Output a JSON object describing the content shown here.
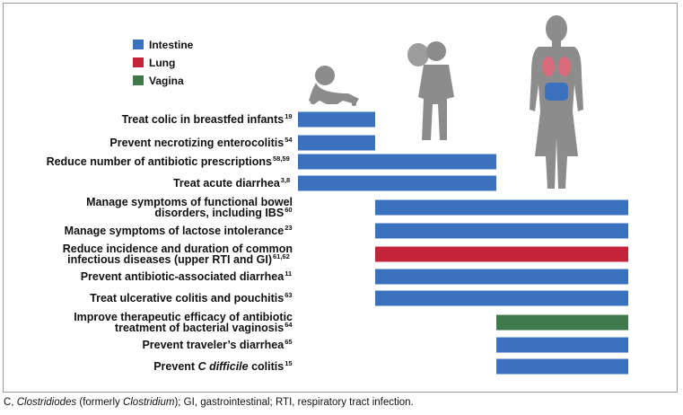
{
  "chart_data": {
    "type": "bar",
    "orientation": "horizontal",
    "subtype": "range",
    "title": "",
    "xlabel": "",
    "ylabel": "",
    "stage_axis": [
      "Infant",
      "Child",
      "Adult"
    ],
    "legend": [
      {
        "name": "Intestine",
        "color": "#3a72bf"
      },
      {
        "name": "Lung",
        "color": "#c3243a"
      },
      {
        "name": "Vagina",
        "color": "#3f7a4c"
      }
    ],
    "bars": [
      {
        "label": "Treat colic in breastfed infants",
        "ref": "19",
        "site": "Intestine",
        "start": 0,
        "end": 1
      },
      {
        "label": "Prevent necrotizing enterocolitis",
        "ref": "54",
        "site": "Intestine",
        "start": 0,
        "end": 1
      },
      {
        "label": "Reduce number of antibiotic prescriptions",
        "ref": "58,59",
        "site": "Intestine",
        "start": 0,
        "end": 2
      },
      {
        "label": "Treat acute diarrhea",
        "ref": "3,8",
        "site": "Intestine",
        "start": 0,
        "end": 2
      },
      {
        "label": "Manage symptoms of functional bowel|disorders, including IBS",
        "ref": "60",
        "site": "Intestine",
        "start": 1,
        "end": 3
      },
      {
        "label": "Manage symptoms of lactose intolerance",
        "ref": "23",
        "site": "Intestine",
        "start": 1,
        "end": 3
      },
      {
        "label": "Reduce incidence and duration of common|infectious diseases (upper RTI and GI)",
        "ref": "61,62",
        "site": "Lung",
        "start": 1,
        "end": 3
      },
      {
        "label": "Prevent antibiotic-associated diarrhea",
        "ref": "11",
        "site": "Intestine",
        "start": 1,
        "end": 3
      },
      {
        "label": "Treat ulcerative colitis and pouchitis",
        "ref": "63",
        "site": "Intestine",
        "start": 1,
        "end": 3
      },
      {
        "label": "Improve therapeutic efficacy of antibiotic|treatment of bacterial vaginosis",
        "ref": "64",
        "site": "Vagina",
        "start": 2,
        "end": 3
      },
      {
        "label": "Prevent traveler’s diarrhea",
        "ref": "65",
        "site": "Intestine",
        "start": 2,
        "end": 3
      },
      {
        "label": "Prevent C difficile colitis",
        "ref": "15",
        "site": "Intestine",
        "start": 2,
        "end": 3
      }
    ]
  },
  "caption": {
    "lead": "C, ",
    "italic1": "Clostridiodes",
    "mid": " (formerly ",
    "italic2": "Clostridium",
    "tail": "); GI, gastrointestinal; RTI, respiratory tract infection."
  },
  "icons": {
    "figure_color": "#8c8c8c",
    "lung_color": "#d96a7a",
    "gut_color": "#3a72bf"
  }
}
